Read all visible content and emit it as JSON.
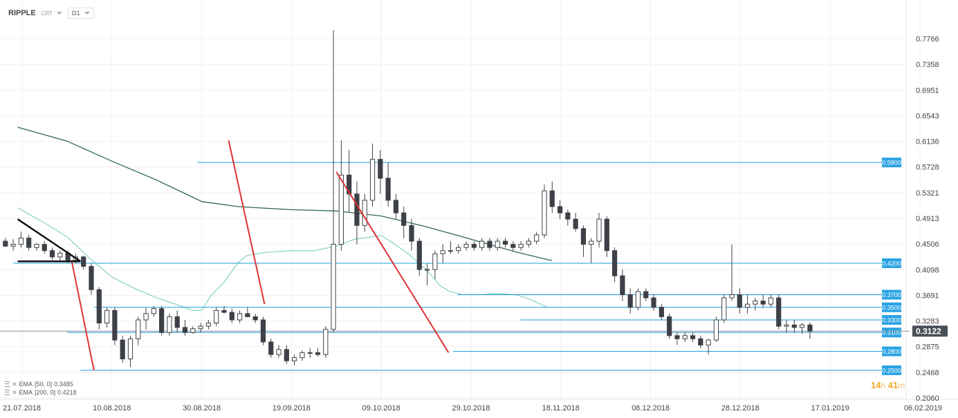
{
  "header": {
    "symbol": "RIPPLE",
    "price_type": "CRT",
    "timeframe": "D1"
  },
  "indicators": [
    {
      "name": "EMA",
      "params": "[50, 0]",
      "value": "0.3485",
      "color": "#8fd3c6"
    },
    {
      "name": "EMA",
      "params": "[200, 0]",
      "value": "0.4218",
      "color": "#2e6a4e"
    }
  ],
  "timer": {
    "hours": "14",
    "h_unit": "h",
    "minutes": "41",
    "m_unit": "m"
  },
  "colors": {
    "bull": "#ffffff",
    "bear": "#3d4147",
    "level": "#1b9dd9",
    "trend": "#e03131",
    "pennant": "#111111",
    "current": "#495057"
  },
  "chart_data": {
    "type": "candlestick",
    "instrument": "RIPPLE",
    "timeframe": "D1",
    "x_ticks": [
      "21.07.2018",
      "10.08.2018",
      "30.08.2018",
      "19.09.2018",
      "09.10.2018",
      "29.10.2018",
      "18.11.2018",
      "08.12.2018",
      "28.12.2018",
      "17.01.2019",
      "06.02.2019"
    ],
    "x_ticks_days_from_first": [
      0,
      20,
      40,
      60,
      80,
      100,
      120,
      140,
      160,
      180,
      200
    ],
    "y_ticks": [
      "0.7766",
      "0.7358",
      "0.6951",
      "0.6543",
      "0.6136",
      "0.5728",
      "0.5321",
      "0.4913",
      "0.4506",
      "0.4098",
      "0.3691",
      "0.3283",
      "0.2875",
      "0.2468",
      "0.2060"
    ],
    "ylim": [
      0.206,
      0.7766
    ],
    "current_price": "0.3122",
    "levels": [
      {
        "label": "0.5800",
        "value": 0.58,
        "from_day": 39
      },
      {
        "label": "0.4200",
        "value": 0.42,
        "from_day": -2
      },
      {
        "label": "0.3700",
        "value": 0.37,
        "from_day": 97
      },
      {
        "label": "0.3500",
        "value": 0.35,
        "from_day": 16
      },
      {
        "label": "0.3300",
        "value": 0.33,
        "from_day": 111
      },
      {
        "label": "0.3100",
        "value": 0.31,
        "from_day": 10
      },
      {
        "label": "0.2800",
        "value": 0.28,
        "from_day": 96
      },
      {
        "label": "0.2500",
        "value": 0.25,
        "from_day": 13
      }
    ],
    "trend_lines": [
      {
        "from": [
          11,
          0.425
        ],
        "to": [
          16,
          0.25
        ]
      },
      {
        "from": [
          46,
          0.615
        ],
        "to": [
          54,
          0.355
        ]
      },
      {
        "from": [
          70,
          0.565
        ],
        "to": [
          95,
          0.278
        ]
      }
    ],
    "pennant": {
      "upper": [
        [
          -1,
          0.49
        ],
        [
          13,
          0.423
        ]
      ],
      "lower": [
        [
          -1,
          0.423
        ],
        [
          13,
          0.423
        ]
      ]
    },
    "ema50": [
      [
        -1,
        0.508
      ],
      [
        5,
        0.484
      ],
      [
        10,
        0.462
      ],
      [
        15,
        0.428
      ],
      [
        20,
        0.398
      ],
      [
        25,
        0.38
      ],
      [
        30,
        0.365
      ],
      [
        35,
        0.353
      ],
      [
        38,
        0.345
      ],
      [
        40,
        0.345
      ],
      [
        42,
        0.368
      ],
      [
        45,
        0.39
      ],
      [
        48,
        0.42
      ],
      [
        50,
        0.432
      ],
      [
        54,
        0.437
      ],
      [
        60,
        0.44
      ],
      [
        65,
        0.44
      ],
      [
        70,
        0.447
      ],
      [
        74,
        0.458
      ],
      [
        80,
        0.464
      ],
      [
        82,
        0.455
      ],
      [
        86,
        0.435
      ],
      [
        90,
        0.41
      ],
      [
        93,
        0.385
      ],
      [
        95,
        0.376
      ],
      [
        98,
        0.37
      ],
      [
        102,
        0.37
      ],
      [
        106,
        0.372
      ],
      [
        110,
        0.37
      ],
      [
        113,
        0.363
      ],
      [
        117,
        0.35
      ]
    ],
    "ema200": [
      [
        -1,
        0.636
      ],
      [
        10,
        0.614
      ],
      [
        20,
        0.582
      ],
      [
        30,
        0.552
      ],
      [
        40,
        0.518
      ],
      [
        48,
        0.51
      ],
      [
        60,
        0.505
      ],
      [
        70,
        0.503
      ],
      [
        80,
        0.495
      ],
      [
        90,
        0.478
      ],
      [
        100,
        0.458
      ],
      [
        110,
        0.438
      ],
      [
        118,
        0.424
      ]
    ],
    "candles": [
      [
        0.455,
        0.46,
        0.448,
        0.447
      ],
      [
        0.447,
        0.458,
        0.44,
        0.45
      ],
      [
        0.45,
        0.47,
        0.445,
        0.46
      ],
      [
        0.46,
        0.465,
        0.44,
        0.445
      ],
      [
        0.445,
        0.452,
        0.44,
        0.45
      ],
      [
        0.45,
        0.455,
        0.435,
        0.44
      ],
      [
        0.44,
        0.445,
        0.425,
        0.43
      ],
      [
        0.43,
        0.44,
        0.423,
        0.436
      ],
      [
        0.436,
        0.44,
        0.42,
        0.425
      ],
      [
        0.425,
        0.435,
        0.42,
        0.43
      ],
      [
        0.43,
        0.432,
        0.41,
        0.415
      ],
      [
        0.415,
        0.42,
        0.37,
        0.378
      ],
      [
        0.378,
        0.382,
        0.315,
        0.325
      ],
      [
        0.325,
        0.35,
        0.318,
        0.345
      ],
      [
        0.345,
        0.35,
        0.29,
        0.298
      ],
      [
        0.298,
        0.305,
        0.262,
        0.268
      ],
      [
        0.268,
        0.305,
        0.255,
        0.3
      ],
      [
        0.3,
        0.335,
        0.29,
        0.33
      ],
      [
        0.33,
        0.35,
        0.315,
        0.34
      ],
      [
        0.34,
        0.352,
        0.335,
        0.348
      ],
      [
        0.348,
        0.352,
        0.305,
        0.31
      ],
      [
        0.31,
        0.34,
        0.305,
        0.335
      ],
      [
        0.335,
        0.345,
        0.31,
        0.318
      ],
      [
        0.318,
        0.33,
        0.305,
        0.31
      ],
      [
        0.31,
        0.32,
        0.308,
        0.316
      ],
      [
        0.316,
        0.325,
        0.31,
        0.32
      ],
      [
        0.32,
        0.33,
        0.315,
        0.325
      ],
      [
        0.325,
        0.35,
        0.32,
        0.345
      ],
      [
        0.345,
        0.352,
        0.34,
        0.342
      ],
      [
        0.342,
        0.348,
        0.325,
        0.33
      ],
      [
        0.33,
        0.345,
        0.325,
        0.34
      ],
      [
        0.34,
        0.35,
        0.335,
        0.335
      ],
      [
        0.335,
        0.34,
        0.325,
        0.33
      ],
      [
        0.33,
        0.335,
        0.29,
        0.295
      ],
      [
        0.295,
        0.3,
        0.27,
        0.275
      ],
      [
        0.275,
        0.29,
        0.27,
        0.283
      ],
      [
        0.283,
        0.29,
        0.26,
        0.265
      ],
      [
        0.265,
        0.275,
        0.258,
        0.27
      ],
      [
        0.27,
        0.282,
        0.265,
        0.278
      ],
      [
        0.278,
        0.285,
        0.27,
        0.278
      ],
      [
        0.278,
        0.285,
        0.272,
        0.275
      ],
      [
        0.275,
        0.32,
        0.27,
        0.315
      ],
      [
        0.315,
        0.79,
        0.31,
        0.45
      ],
      [
        0.45,
        0.615,
        0.44,
        0.56
      ],
      [
        0.56,
        0.6,
        0.5,
        0.53
      ],
      [
        0.53,
        0.55,
        0.45,
        0.48
      ],
      [
        0.48,
        0.53,
        0.47,
        0.52
      ],
      [
        0.52,
        0.61,
        0.51,
        0.585
      ],
      [
        0.585,
        0.6,
        0.53,
        0.555
      ],
      [
        0.555,
        0.58,
        0.51,
        0.52
      ],
      [
        0.52,
        0.53,
        0.49,
        0.5
      ],
      [
        0.5,
        0.51,
        0.46,
        0.48
      ],
      [
        0.48,
        0.49,
        0.44,
        0.455
      ],
      [
        0.455,
        0.46,
        0.4,
        0.41
      ],
      [
        0.41,
        0.42,
        0.385,
        0.41
      ],
      [
        0.41,
        0.44,
        0.395,
        0.435
      ],
      [
        0.435,
        0.45,
        0.42,
        0.44
      ],
      [
        0.44,
        0.455,
        0.435,
        0.44
      ],
      [
        0.44,
        0.45,
        0.435,
        0.445
      ],
      [
        0.445,
        0.455,
        0.44,
        0.45
      ],
      [
        0.45,
        0.455,
        0.44,
        0.445
      ],
      [
        0.445,
        0.46,
        0.44,
        0.455
      ],
      [
        0.455,
        0.46,
        0.44,
        0.445
      ],
      [
        0.445,
        0.46,
        0.44,
        0.455
      ],
      [
        0.455,
        0.46,
        0.445,
        0.45
      ],
      [
        0.45,
        0.455,
        0.44,
        0.445
      ],
      [
        0.445,
        0.455,
        0.44,
        0.45
      ],
      [
        0.45,
        0.46,
        0.445,
        0.455
      ],
      [
        0.455,
        0.47,
        0.45,
        0.465
      ],
      [
        0.465,
        0.545,
        0.46,
        0.535
      ],
      [
        0.535,
        0.55,
        0.5,
        0.51
      ],
      [
        0.51,
        0.52,
        0.49,
        0.5
      ],
      [
        0.5,
        0.505,
        0.48,
        0.49
      ],
      [
        0.49,
        0.5,
        0.47,
        0.475
      ],
      [
        0.475,
        0.48,
        0.43,
        0.45
      ],
      [
        0.45,
        0.46,
        0.42,
        0.455
      ],
      [
        0.455,
        0.5,
        0.445,
        0.49
      ],
      [
        0.49,
        0.495,
        0.43,
        0.44
      ],
      [
        0.44,
        0.445,
        0.39,
        0.4
      ],
      [
        0.4,
        0.41,
        0.36,
        0.37
      ],
      [
        0.37,
        0.38,
        0.34,
        0.35
      ],
      [
        0.35,
        0.38,
        0.345,
        0.375
      ],
      [
        0.375,
        0.38,
        0.36,
        0.365
      ],
      [
        0.365,
        0.37,
        0.345,
        0.35
      ],
      [
        0.35,
        0.355,
        0.33,
        0.335
      ],
      [
        0.335,
        0.34,
        0.3,
        0.305
      ],
      [
        0.305,
        0.31,
        0.29,
        0.3
      ],
      [
        0.3,
        0.31,
        0.295,
        0.305
      ],
      [
        0.305,
        0.31,
        0.295,
        0.3
      ],
      [
        0.3,
        0.305,
        0.285,
        0.29
      ],
      [
        0.29,
        0.3,
        0.275,
        0.298
      ],
      [
        0.298,
        0.335,
        0.295,
        0.33
      ],
      [
        0.33,
        0.37,
        0.325,
        0.365
      ],
      [
        0.365,
        0.45,
        0.36,
        0.37
      ],
      [
        0.37,
        0.38,
        0.34,
        0.35
      ],
      [
        0.35,
        0.37,
        0.34,
        0.355
      ],
      [
        0.355,
        0.365,
        0.345,
        0.36
      ],
      [
        0.36,
        0.37,
        0.35,
        0.355
      ],
      [
        0.355,
        0.37,
        0.35,
        0.365
      ],
      [
        0.365,
        0.37,
        0.315,
        0.32
      ],
      [
        0.32,
        0.33,
        0.31,
        0.322
      ],
      [
        0.322,
        0.33,
        0.31,
        0.318
      ],
      [
        0.318,
        0.325,
        0.308,
        0.322
      ],
      [
        0.322,
        0.326,
        0.3,
        0.312
      ]
    ],
    "candle_day_step": 1.74
  }
}
